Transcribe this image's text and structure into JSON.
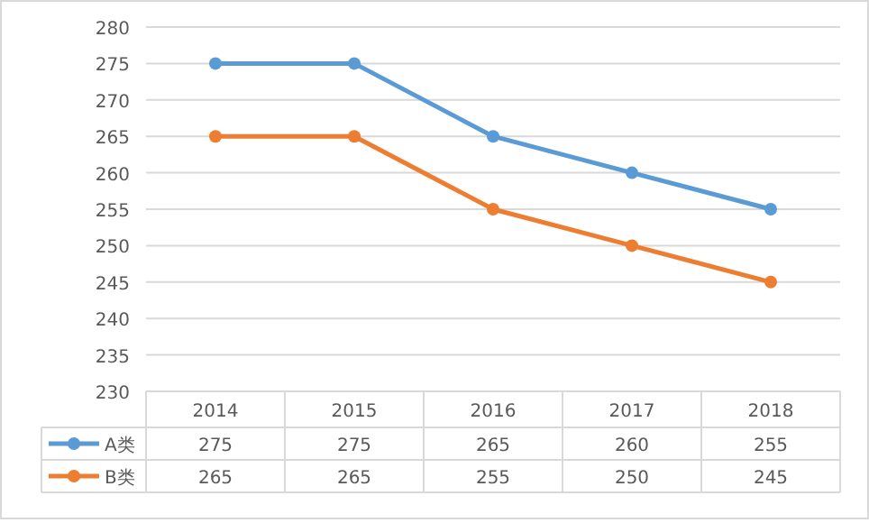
{
  "chart_data": {
    "type": "line",
    "categories": [
      "2014",
      "2015",
      "2016",
      "2017",
      "2018"
    ],
    "series": [
      {
        "name": "A类",
        "color": "#5b9bd5",
        "values": [
          275,
          275,
          265,
          260,
          255
        ]
      },
      {
        "name": "B类",
        "color": "#ed7d31",
        "values": [
          265,
          265,
          255,
          250,
          245
        ]
      }
    ],
    "ylim": [
      230,
      280
    ],
    "yticks": [
      230,
      235,
      240,
      245,
      250,
      255,
      260,
      265,
      270,
      275,
      280
    ],
    "grid": "y",
    "legend": "bottom",
    "marker": "circle",
    "line_style": "solid",
    "data_labels": true
  }
}
